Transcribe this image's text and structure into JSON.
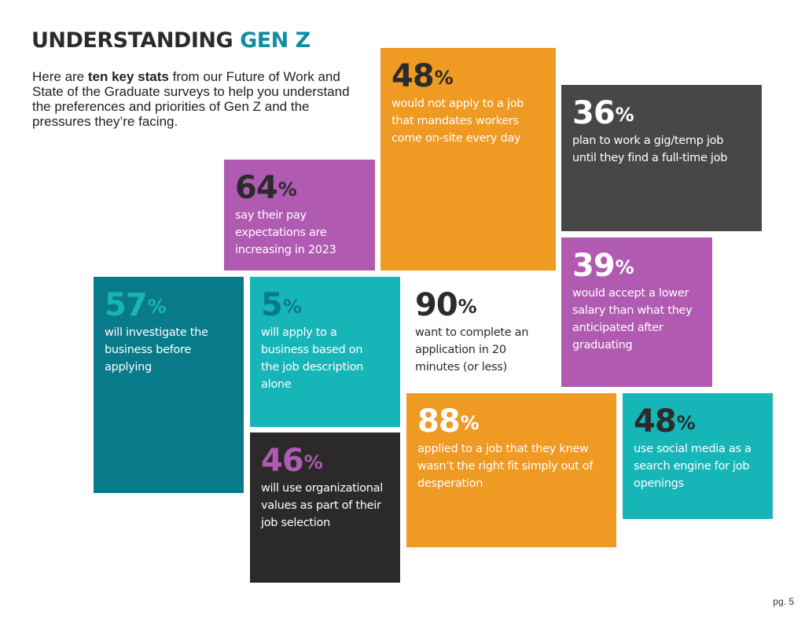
{
  "header": {
    "title_main": "UNDERSTANDING",
    "title_accent": "GEN Z",
    "intro_pre": "Here are ",
    "intro_bold": "ten key stats",
    "intro_post": " from our Future of Work and State of the Graduate surveys to help you understand the preferences and priorities of Gen Z and the pressures they’re facing."
  },
  "colors": {
    "orange": "#ef9a23",
    "dark_gray": "#474747",
    "purple": "#b05ab1",
    "teal_dark": "#097a8a",
    "teal": "#16b5b8",
    "charcoal": "#2b292a",
    "accent_teal": "#0e8ea0"
  },
  "stats": {
    "s1": {
      "value": "48",
      "sign": "%",
      "text": "would not apply to a job that mandates workers come on-site every day"
    },
    "s2": {
      "value": "36",
      "sign": "%",
      "text": "plan to work a gig/temp job until they find a full-time job"
    },
    "s3": {
      "value": "64",
      "sign": "%",
      "text": "say their pay expectations are increasing in 2023"
    },
    "s4": {
      "value": "39",
      "sign": "%",
      "text": "would accept a lower salary than what they anticipated after graduating"
    },
    "s5": {
      "value": "57",
      "sign": "%",
      "text": "will investigate the business before applying"
    },
    "s6": {
      "value": "5",
      "sign": "%",
      "text": "will apply to a business based on the job description alone"
    },
    "s7": {
      "value": "90",
      "sign": "%",
      "text": "want to complete an application in 20 minutes (or less)"
    },
    "s8": {
      "value": "88",
      "sign": "%",
      "text": "applied to a job that they knew wasn’t the right fit simply out of desperation"
    },
    "s9": {
      "value": "48",
      "sign": "%",
      "text": "use social media as a search engine for job openings"
    },
    "s10": {
      "value": "46",
      "sign": "%",
      "text": "will use organizational values as part of their job selection"
    }
  },
  "footer": {
    "page": "pg. 5"
  }
}
